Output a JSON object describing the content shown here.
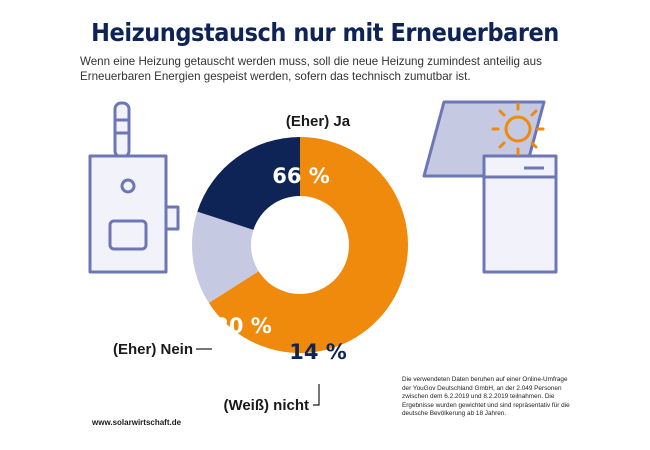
{
  "title": "Heizungstausch nur mit Erneuerbaren",
  "subtitle": "Wenn eine Heizung getauscht werden muss, soll die neue Heizung zumindest anteilig aus Erneuerbaren Energien gespeist werden, sofern das technisch zumutbar ist.",
  "source": "www.solarwirtschaft.de",
  "footnote": "Die verwendeten Daten beruhen auf einer Online-Umfrage der YouGov Deutschland GmbH, an der 2.049 Personen zwischen dem 6.2.2019 und 8.2.2019 teilnahmen. Die Ergebnisse wurden gewichtet und sind repräsentativ für die deutsche Bevölkerung ab 18 Jahren.",
  "colors": {
    "navy": "#0f2456",
    "orange": "#f08a0c",
    "lavender": "#c5c9e2",
    "outline": "#6e77b6",
    "icon_fill": "#f2f3fa",
    "sun": "#f08a0c"
  },
  "icons": [
    "boiler-icon",
    "solar-panel-icon",
    "sun-icon"
  ],
  "chart_data": {
    "type": "pie",
    "style": "donut",
    "title": "Heizungstausch nur mit Erneuerbaren",
    "series": [
      {
        "name": "(Eher) Ja",
        "value": 66,
        "label": "66 %",
        "color": "#f08a0c",
        "label_color": "#ffffff"
      },
      {
        "name": "(Weiß) nicht",
        "value": 14,
        "label": "14 %",
        "color": "#c5c9e2",
        "label_color": "#0f2456"
      },
      {
        "name": "(Eher) Nein",
        "value": 20,
        "label": "20 %",
        "color": "#0f2456",
        "label_color": "#ffffff"
      }
    ],
    "unit": "%"
  }
}
